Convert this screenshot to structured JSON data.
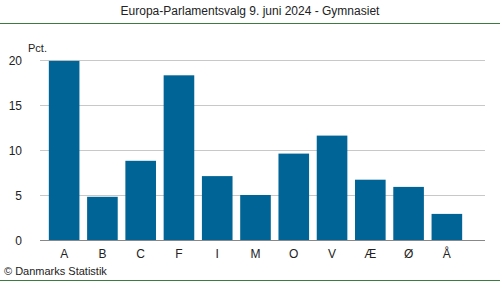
{
  "chart_data": {
    "type": "bar",
    "title": "Europa-Parlamentsvalg 9. juni 2024 - Gymnasiet",
    "ylabel": "Pct.",
    "source": "© Danmarks Statistik",
    "categories": [
      "A",
      "B",
      "C",
      "F",
      "I",
      "M",
      "O",
      "V",
      "Æ",
      "Ø",
      "Å"
    ],
    "values": [
      19.9,
      4.8,
      8.8,
      18.3,
      7.1,
      5.0,
      9.6,
      11.6,
      6.7,
      5.9,
      2.9
    ],
    "color": "#006596",
    "ylim": [
      0,
      20
    ],
    "yticks": [
      0,
      5,
      10,
      15,
      20
    ],
    "grid": true
  }
}
